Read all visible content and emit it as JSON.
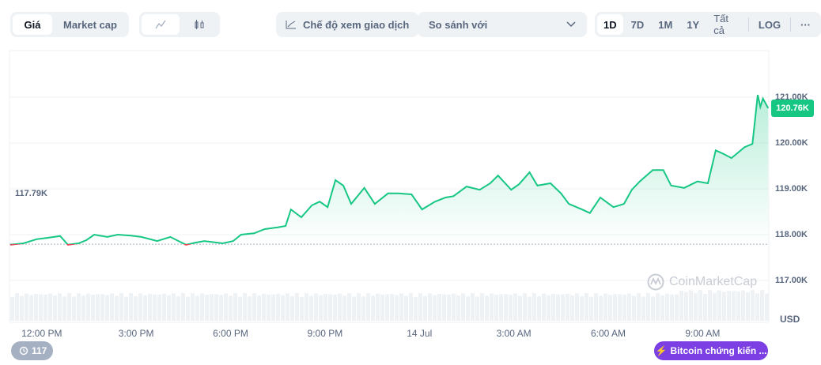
{
  "toolbar": {
    "type_tabs": [
      {
        "label": "Giá",
        "active": true
      },
      {
        "label": "Market cap",
        "active": false
      }
    ],
    "chart_style": [
      {
        "icon": "line-chart-icon",
        "active": true
      },
      {
        "icon": "candlestick-icon",
        "active": false
      }
    ],
    "trading_view_label": "Chế độ xem giao dịch",
    "compare_label": "So sánh với",
    "ranges": [
      {
        "label": "1D",
        "active": true
      },
      {
        "label": "7D"
      },
      {
        "label": "1M"
      },
      {
        "label": "1Y"
      },
      {
        "label": "Tất cả"
      }
    ],
    "log_label": "LOG",
    "more_label": "···"
  },
  "watermark": "CoinMarketCap",
  "history_badge": "117",
  "news_badge": "Bitcoin chứng kiến ...",
  "colors": {
    "up": "#16c784",
    "down": "#ea3943",
    "accent": "#7b3fe4"
  },
  "chart_data": {
    "type": "area",
    "currency": "USD",
    "open_label": "117.79K",
    "open_value": 117.79,
    "current_label": "120.76K",
    "ylim": [
      116.8,
      121.6
    ],
    "yticks": [
      {
        "v": 121,
        "label": "121.00K"
      },
      {
        "v": 120,
        "label": "120.00K"
      },
      {
        "v": 119,
        "label": "119.00K"
      },
      {
        "v": 118,
        "label": "118.00K"
      },
      {
        "v": 117,
        "label": "117.00K"
      }
    ],
    "xticks": [
      {
        "t": "13 Jul 12:00",
        "label": "12:00 PM"
      },
      {
        "t": "13 Jul 15:00",
        "label": "3:00 PM"
      },
      {
        "t": "13 Jul 18:00",
        "label": "6:00 PM"
      },
      {
        "t": "13 Jul 21:00",
        "label": "9:00 PM"
      },
      {
        "t": "14 Jul 00:00",
        "label": "14 Jul"
      },
      {
        "t": "14 Jul 03:00",
        "label": "3:00 AM"
      },
      {
        "t": "14 Jul 06:00",
        "label": "6:00 AM"
      },
      {
        "t": "14 Jul 09:00",
        "label": "9:00 AM"
      }
    ],
    "x": [
      "13 Jul 11:00",
      "13 Jul 11:25",
      "13 Jul 11:50",
      "13 Jul 12:10",
      "13 Jul 12:35",
      "13 Jul 12:50",
      "13 Jul 13:10",
      "13 Jul 13:25",
      "13 Jul 13:40",
      "13 Jul 14:05",
      "13 Jul 14:25",
      "13 Jul 14:50",
      "13 Jul 15:10",
      "13 Jul 15:40",
      "13 Jul 16:05",
      "13 Jul 16:35",
      "13 Jul 16:55",
      "13 Jul 17:10",
      "13 Jul 17:45",
      "13 Jul 18:05",
      "13 Jul 18:20",
      "13 Jul 18:45",
      "13 Jul 19:05",
      "13 Jul 19:30",
      "13 Jul 19:45",
      "13 Jul 19:55",
      "13 Jul 20:15",
      "13 Jul 20:35",
      "13 Jul 20:50",
      "13 Jul 21:05",
      "13 Jul 21:20",
      "13 Jul 21:35",
      "13 Jul 21:50",
      "13 Jul 22:15",
      "13 Jul 22:35",
      "13 Jul 23:00",
      "13 Jul 23:20",
      "13 Jul 23:45",
      "14 Jul 00:05",
      "14 Jul 00:30",
      "14 Jul 00:50",
      "14 Jul 01:05",
      "14 Jul 01:30",
      "14 Jul 01:55",
      "14 Jul 02:15",
      "14 Jul 02:30",
      "14 Jul 02:55",
      "14 Jul 03:10",
      "14 Jul 03:30",
      "14 Jul 03:45",
      "14 Jul 04:10",
      "14 Jul 04:30",
      "14 Jul 04:45",
      "14 Jul 05:10",
      "14 Jul 05:25",
      "14 Jul 05:45",
      "14 Jul 06:10",
      "14 Jul 06:30",
      "14 Jul 06:45",
      "14 Jul 07:00",
      "14 Jul 07:25",
      "14 Jul 07:45",
      "14 Jul 08:00",
      "14 Jul 08:25",
      "14 Jul 08:50",
      "14 Jul 09:10",
      "14 Jul 09:25",
      "14 Jul 09:40",
      "14 Jul 09:55",
      "14 Jul 10:20",
      "14 Jul 10:35",
      "14 Jul 10:45",
      "14 Jul 10:50",
      "14 Jul 10:55",
      "14 Jul 11:05"
    ],
    "values": [
      117.78,
      117.81,
      117.9,
      117.93,
      117.97,
      117.78,
      117.81,
      117.88,
      118.0,
      117.95,
      118.0,
      117.98,
      117.95,
      117.86,
      117.95,
      117.78,
      117.83,
      117.86,
      117.81,
      117.86,
      118.0,
      118.03,
      118.12,
      118.16,
      118.19,
      118.55,
      118.38,
      118.64,
      118.72,
      118.6,
      119.19,
      119.07,
      118.67,
      119.02,
      118.67,
      118.9,
      118.9,
      118.88,
      118.55,
      118.72,
      118.81,
      118.84,
      119.05,
      118.98,
      119.12,
      119.29,
      118.98,
      119.1,
      119.36,
      119.07,
      119.12,
      118.9,
      118.67,
      118.55,
      118.47,
      118.81,
      118.6,
      118.67,
      118.98,
      119.16,
      119.41,
      119.41,
      119.07,
      119.02,
      119.16,
      119.12,
      119.84,
      119.76,
      119.67,
      119.91,
      119.98,
      121.05,
      120.79,
      120.97,
      120.76
    ],
    "grid": true
  }
}
